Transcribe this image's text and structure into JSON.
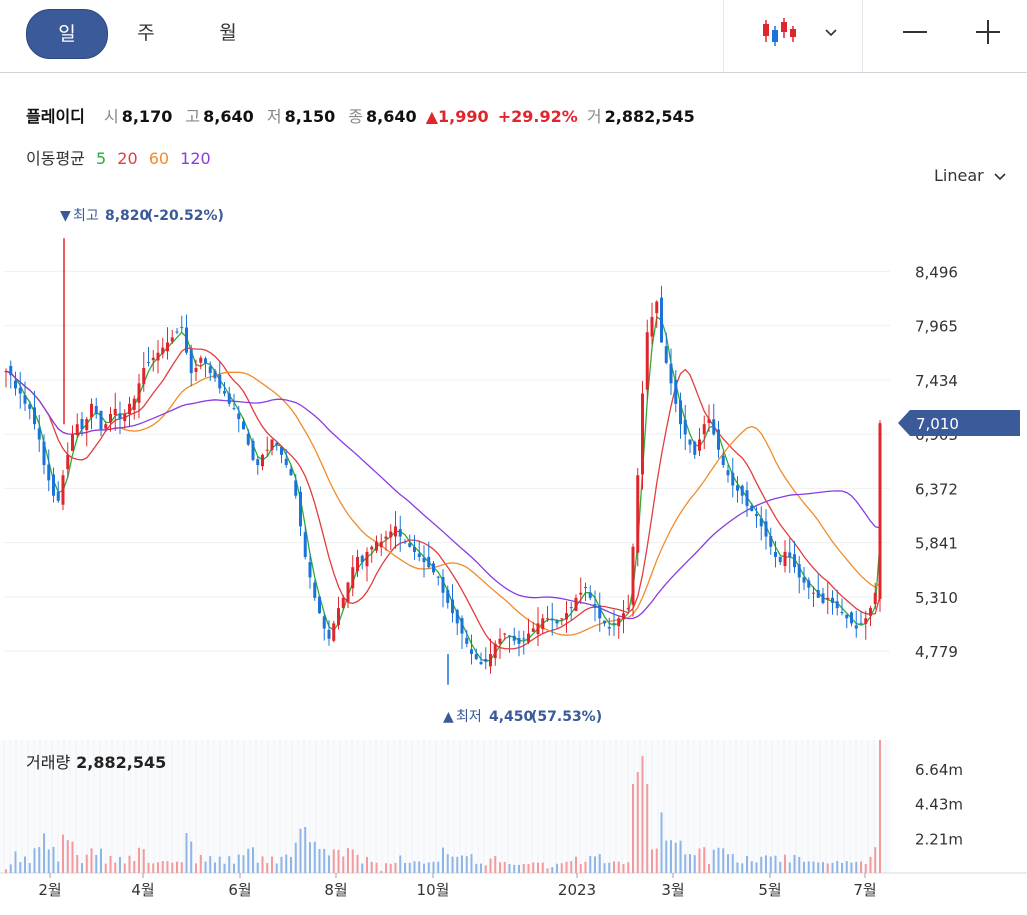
{
  "toolbar": {
    "periods": [
      {
        "label": "일",
        "active": true
      },
      {
        "label": "주",
        "active": false
      },
      {
        "label": "월",
        "active": false
      }
    ],
    "chart_type_icon": "candlestick-icon",
    "zoom_out_icon": "minus-icon",
    "zoom_in_icon": "plus-icon"
  },
  "stock": {
    "name": "플레이디",
    "open_label": "시",
    "open": "8,170",
    "high_label": "고",
    "high": "8,640",
    "low_label": "저",
    "low": "8,150",
    "close_label": "종",
    "close": "8,640",
    "change": "1,990",
    "change_pct": "+29.92%",
    "volume_label": "거",
    "volume": "2,882,545"
  },
  "ma_legend": {
    "title": "이동평균",
    "items": [
      {
        "label": "5",
        "color": "#2eab3a"
      },
      {
        "label": "20",
        "color": "#e33d3d"
      },
      {
        "label": "60",
        "color": "#f08c2a"
      },
      {
        "label": "120",
        "color": "#8a3ce0"
      }
    ]
  },
  "scale_selector": {
    "label": "Linear"
  },
  "annotations": {
    "high": {
      "label": "최고",
      "value": "8,820",
      "pct": "(-20.52%)"
    },
    "low": {
      "label": "최저",
      "value": "4,450",
      "pct": "(57.53%)"
    }
  },
  "current_price_tag": "7,010",
  "volume_title": {
    "label": "거래량",
    "value": "2,882,545"
  },
  "colors": {
    "up": "#e0262c",
    "down": "#1a73d9",
    "accent": "#3b5a9a"
  },
  "chart_data": {
    "type": "candlestick",
    "y_axis": {
      "ticks": [
        4779,
        5310,
        5841,
        6372,
        6903,
        7434,
        7965,
        8496
      ],
      "range": [
        4300,
        8950
      ],
      "position": "right"
    },
    "x_axis": {
      "ticks": [
        "2월",
        "4월",
        "6월",
        "8월",
        "10월",
        "2023",
        "3월",
        "5월",
        "7월"
      ]
    },
    "volume_axis": {
      "ticks": [
        "2.21m",
        "4.43m",
        "6.64m"
      ],
      "values": [
        2210000,
        4430000,
        6640000
      ],
      "range": [
        0,
        8500000
      ]
    },
    "high_marker": 8820,
    "low_marker": 4450,
    "current_price": 7010,
    "close_series": [
      7520,
      7480,
      7350,
      7300,
      7200,
      7150,
      7000,
      6850,
      6600,
      6450,
      6300,
      6250,
      6500,
      6700,
      6900,
      7000,
      6950,
      7050,
      7200,
      7100,
      6950,
      7000,
      7100,
      7150,
      7050,
      7100,
      7200,
      7250,
      7400,
      7550,
      7600,
      7650,
      7700,
      7750,
      7800,
      7850,
      7900,
      7950,
      7700,
      7500,
      7550,
      7650,
      7600,
      7500,
      7450,
      7350,
      7300,
      7200,
      7150,
      7050,
      6950,
      6800,
      6650,
      6600,
      6700,
      6750,
      6850,
      6800,
      6700,
      6600,
      6500,
      6300,
      6000,
      5700,
      5500,
      5300,
      5150,
      5000,
      4900,
      5050,
      5200,
      5300,
      5450,
      5600,
      5700,
      5650,
      5750,
      5800,
      5850,
      5850,
      5900,
      5950,
      6000,
      5900,
      5850,
      5800,
      5750,
      5700,
      5650,
      5600,
      5550,
      5500,
      5350,
      5250,
      5150,
      5050,
      4950,
      4850,
      4750,
      4700,
      4650,
      4680,
      4750,
      4850,
      4900,
      4950,
      4920,
      4880,
      4850,
      4900,
      4950,
      5000,
      5050,
      5100,
      5100,
      5080,
      5050,
      5100,
      5150,
      5200,
      5300,
      5350,
      5400,
      5300,
      5200,
      5100,
      5050,
      5000,
      5050,
      5100,
      5150,
      5200,
      5800,
      6500,
      7300,
      7900,
      8050,
      8200,
      7800,
      7600,
      7400,
      7200,
      7000,
      6900,
      6800,
      6700,
      6850,
      7000,
      7050,
      6900,
      6750,
      6600,
      6500,
      6400,
      6350,
      6300,
      6200,
      6150,
      6100,
      6000,
      5900,
      5800,
      5700,
      5650,
      5750,
      5700,
      5600,
      5500,
      5450,
      5400,
      5350,
      5300,
      5250,
      5300,
      5250,
      5200,
      5150,
      5100,
      5050,
      5000,
      5050,
      5100,
      5200,
      5350,
      7010
    ]
  }
}
